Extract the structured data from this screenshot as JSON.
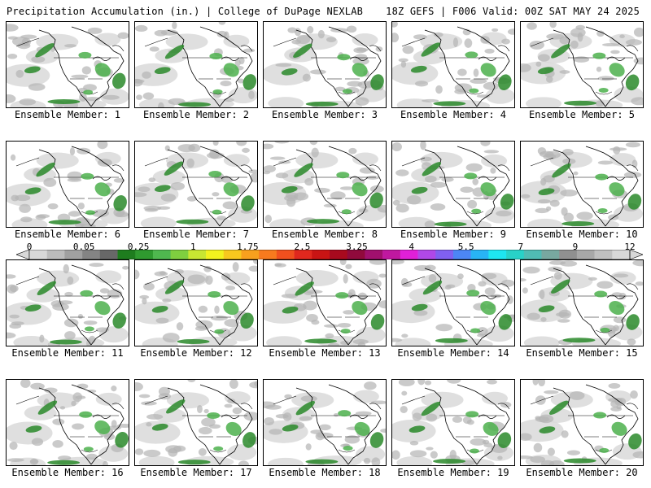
{
  "header": {
    "title": "Precipitation Accumulation (in.) | College of DuPage NEXLAB",
    "run_info": "18Z GEFS | F006 Valid: 00Z SAT MAY 24 2025"
  },
  "panels": [
    {
      "label": "Ensemble Member: 1"
    },
    {
      "label": "Ensemble Member: 2"
    },
    {
      "label": "Ensemble Member: 3"
    },
    {
      "label": "Ensemble Member: 4"
    },
    {
      "label": "Ensemble Member: 5"
    },
    {
      "label": "Ensemble Member: 6"
    },
    {
      "label": "Ensemble Member: 7"
    },
    {
      "label": "Ensemble Member: 8"
    },
    {
      "label": "Ensemble Member: 9"
    },
    {
      "label": "Ensemble Member: 10"
    },
    {
      "label": "Ensemble Member: 11"
    },
    {
      "label": "Ensemble Member: 12"
    },
    {
      "label": "Ensemble Member: 13"
    },
    {
      "label": "Ensemble Member: 14"
    },
    {
      "label": "Ensemble Member: 15"
    },
    {
      "label": "Ensemble Member: 16"
    },
    {
      "label": "Ensemble Member: 17"
    },
    {
      "label": "Ensemble Member: 18"
    },
    {
      "label": "Ensemble Member: 19"
    },
    {
      "label": "Ensemble Member: 20"
    }
  ],
  "legend": {
    "tick_labels": [
      "0",
      "0.05",
      "0.25",
      "1",
      "1.75",
      "2.5",
      "3.25",
      "4",
      "5.5",
      "7",
      "9",
      "12"
    ],
    "colors": [
      "#d8d8d8",
      "#bcbcbc",
      "#a0a0a0",
      "#848484",
      "#686868",
      "#1e7d1e",
      "#2f9a2f",
      "#4fb84f",
      "#7fcf3f",
      "#c8e632",
      "#f2f21e",
      "#f7c81e",
      "#f7a01e",
      "#f77a1e",
      "#f0501e",
      "#e0281e",
      "#c81414",
      "#a80a1e",
      "#900a3c",
      "#a0106e",
      "#c018a0",
      "#e020d8",
      "#b048e8",
      "#8060f0",
      "#4c86f5",
      "#28b4f5",
      "#1ee6f0",
      "#28d2c8",
      "#50bcb4",
      "#78a8a0",
      "#909090",
      "#a8a8a8",
      "#c0c0c0",
      "#d8d8d8"
    ],
    "shading": {
      "light": "#d9d9d9",
      "mid": "#b4b4b4",
      "green_light": "#4cb04c",
      "green_dark": "#2a8a2a"
    }
  }
}
